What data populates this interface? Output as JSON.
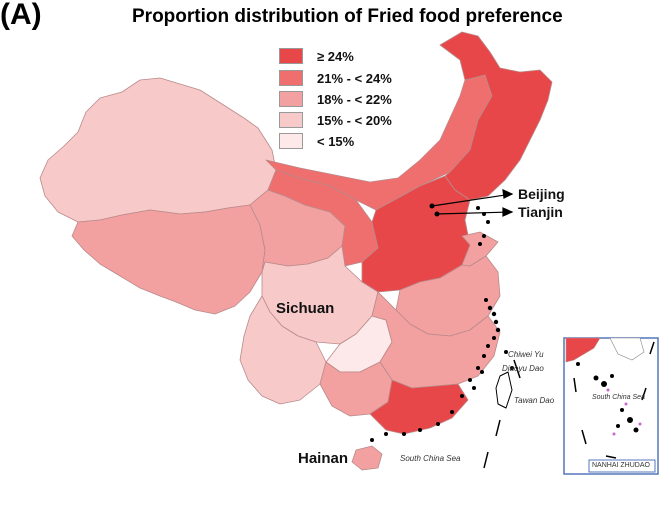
{
  "figure": {
    "panel_label": "(A)",
    "title": "Proportion distribution of Fried food preference"
  },
  "legend": [
    {
      "label": "≥ 24%",
      "color": "#e8474a"
    },
    {
      "label": "21% - < 24%",
      "color": "#ef6f6f"
    },
    {
      "label": "18% - < 22%",
      "color": "#f3a0a0"
    },
    {
      "label": "15% - < 20%",
      "color": "#f8c9c9"
    },
    {
      "label": "< 15%",
      "color": "#fde9e9"
    }
  ],
  "labels": {
    "beijing": "Beijing",
    "tianjin": "Tianjin",
    "sichuan": "Sichuan",
    "hainan": "Hainan",
    "chiwei_yu": "Chiwei Yu",
    "diaoyu_dao": "Diaoyu Dao",
    "taiwan_dao": "Tawan Dao",
    "south_china_sea": "South China Sea",
    "inset_south_china_sea": "South China Sea",
    "nanhai_zhudao": "NANHAI ZHUDAO"
  }
}
